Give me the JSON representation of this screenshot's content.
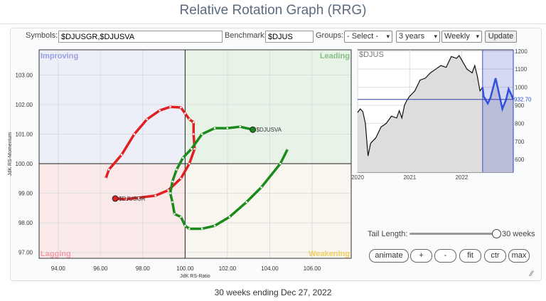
{
  "title": "Relative Rotation Graph (RRG)",
  "controls": {
    "symbols_label": "Symbols:",
    "symbols_value": "$DJUSGR,$DJUSVA",
    "benchmark_label": "Benchmark:",
    "benchmark_value": "$DJUS",
    "groups_label": "Groups:",
    "groups_value": "- Select -",
    "period_value": "3 years",
    "frequency_value": "Weekly",
    "update_label": "Update"
  },
  "rrg": {
    "quadrants": {
      "improving": "Improving",
      "leading": "Leading",
      "lagging": "Lagging",
      "weakening": "Weakening"
    },
    "colors": {
      "improving": "#eceef8",
      "leading": "#e8f3e8",
      "lagging": "#f9e9e9",
      "weakening": "#f8f6ee"
    },
    "xlabel": "JdK RS-Ratio",
    "ylabel": "JdK RS-Momentum",
    "x_ticks": [
      "94.00",
      "96.00",
      "98.00",
      "100.00",
      "102.00",
      "104.00",
      "106.00"
    ],
    "y_ticks": [
      "103.00",
      "102.00",
      "101.00",
      "100.00",
      "99.00",
      "98.00",
      "97.00"
    ],
    "xlim": [
      93.1,
      107.85
    ],
    "ylim": [
      96.8,
      103.85
    ],
    "series": [
      {
        "name": "$DJUSGR",
        "color": "#e02020",
        "points": [
          [
            96.25,
            99.5
          ],
          [
            96.4,
            99.8
          ],
          [
            97,
            100.3
          ],
          [
            97.6,
            101
          ],
          [
            98.2,
            101.5
          ],
          [
            98.8,
            101.8
          ],
          [
            99.3,
            101.92
          ],
          [
            99.8,
            101.9
          ],
          [
            100,
            101.7
          ],
          [
            100.2,
            101.5
          ],
          [
            100.4,
            101.4
          ],
          [
            100.4,
            101
          ],
          [
            100.45,
            100.5
          ],
          [
            100.2,
            100
          ],
          [
            99.8,
            99.5
          ],
          [
            99.2,
            99.1
          ],
          [
            98.6,
            98.92
          ],
          [
            97.8,
            98.85
          ],
          [
            97.2,
            98.8
          ],
          [
            96.7,
            98.82
          ]
        ]
      },
      {
        "name": "$DJUSVA",
        "color": "#1a8a1a",
        "points": [
          [
            104.85,
            100.5
          ],
          [
            104.5,
            100
          ],
          [
            103.6,
            99.2
          ],
          [
            102.9,
            98.7
          ],
          [
            102.1,
            98.2
          ],
          [
            101.4,
            97.9
          ],
          [
            100.8,
            97.8
          ],
          [
            100.2,
            97.8
          ],
          [
            100,
            97.9
          ],
          [
            99.8,
            98.2
          ],
          [
            99.5,
            98.3
          ],
          [
            99.4,
            98.7
          ],
          [
            99.3,
            99
          ],
          [
            99.4,
            99.4
          ],
          [
            99.6,
            99.8
          ],
          [
            99.9,
            100.2
          ],
          [
            100.3,
            100.5
          ],
          [
            100.8,
            101
          ],
          [
            101.4,
            101.2
          ],
          [
            102,
            101.2
          ],
          [
            102.6,
            101.25
          ],
          [
            103.2,
            101.15
          ]
        ]
      }
    ]
  },
  "benchmark_chart": {
    "symbol": "$DJUS",
    "last_value": "932.70",
    "x_ticks": [
      "2020",
      "2021",
      "2022"
    ],
    "y_ticks": [
      "1200",
      "1100",
      "1000",
      "900",
      "800",
      "700",
      "600"
    ],
    "prices": [
      [
        2020.0,
        860
      ],
      [
        2020.05,
        880
      ],
      [
        2020.1,
        865
      ],
      [
        2020.15,
        800
      ],
      [
        2020.2,
        620
      ],
      [
        2020.25,
        690
      ],
      [
        2020.35,
        720
      ],
      [
        2020.45,
        780
      ],
      [
        2020.55,
        800
      ],
      [
        2020.65,
        840
      ],
      [
        2020.75,
        830
      ],
      [
        2020.8,
        870
      ],
      [
        2020.85,
        830
      ],
      [
        2020.9,
        900
      ],
      [
        2020.95,
        930
      ],
      [
        2021.0,
        950
      ],
      [
        2021.1,
        980
      ],
      [
        2021.2,
        1040
      ],
      [
        2021.3,
        1050
      ],
      [
        2021.4,
        1080
      ],
      [
        2021.5,
        1100
      ],
      [
        2021.6,
        1120
      ],
      [
        2021.7,
        1110
      ],
      [
        2021.8,
        1170
      ],
      [
        2021.9,
        1160
      ],
      [
        2021.95,
        1175
      ],
      [
        2022.0,
        1150
      ],
      [
        2022.1,
        1100
      ],
      [
        2022.2,
        1080
      ],
      [
        2022.25,
        1120
      ],
      [
        2022.3,
        1060
      ],
      [
        2022.35,
        980
      ],
      [
        2022.4,
        1000
      ],
      [
        2022.42,
        950
      ],
      [
        2022.5,
        910
      ],
      [
        2022.55,
        940
      ],
      [
        2022.65,
        1050
      ],
      [
        2022.72,
        960
      ],
      [
        2022.78,
        880
      ],
      [
        2022.85,
        930
      ],
      [
        2022.9,
        990
      ],
      [
        2022.95,
        960
      ],
      [
        2022.99,
        932.7
      ]
    ],
    "highlight_start": 2022.4
  },
  "tail": {
    "label": "Tail Length:",
    "value": "30 weeks",
    "fraction": 1.0
  },
  "buttons": [
    "animate",
    "+",
    "-",
    "fit",
    "ctr",
    "max"
  ],
  "footer": "30 weeks ending Dec 27, 2022"
}
